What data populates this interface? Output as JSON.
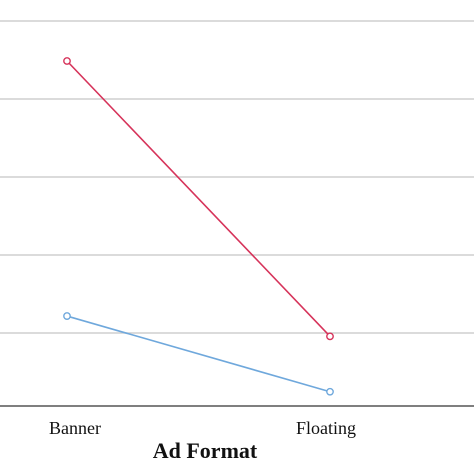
{
  "chart_data": {
    "type": "line",
    "title": "",
    "xlabel": "Ad Format",
    "ylabel": "",
    "categories": [
      "Banner",
      "Floating"
    ],
    "ylim": [
      0,
      5
    ],
    "grid": true,
    "series": [
      {
        "values": [
          4.5,
          0.97
        ],
        "color": "#d6335a"
      },
      {
        "values": [
          1.23,
          0.26
        ],
        "color": "#6fa8dc"
      }
    ],
    "colors": {
      "grid": "#cfcfcf",
      "axis": "#555555"
    }
  }
}
